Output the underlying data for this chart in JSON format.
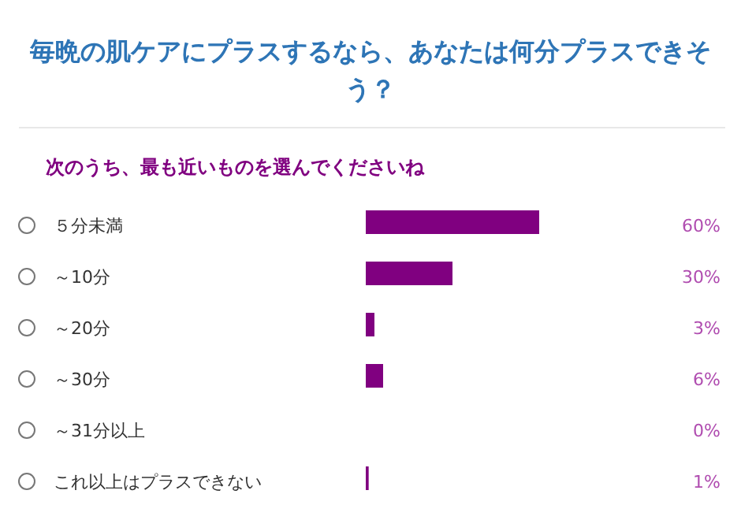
{
  "chart_data": {
    "type": "bar",
    "orientation": "horizontal",
    "title": "毎晩の肌ケアにプラスするなら、あなたは何分プラスできそう？",
    "subtitle": "次のうち、最も近いものを選んでくださいね",
    "categories": [
      "５分未満",
      "～10分",
      "～20分",
      "～30分",
      "～31分以上",
      "これ以上はプラスできない"
    ],
    "values": [
      60,
      30,
      3,
      6,
      0,
      1
    ],
    "value_labels": [
      "60%",
      "30%",
      "3%",
      "6%",
      "0%",
      "1%"
    ],
    "color": "#800080"
  }
}
